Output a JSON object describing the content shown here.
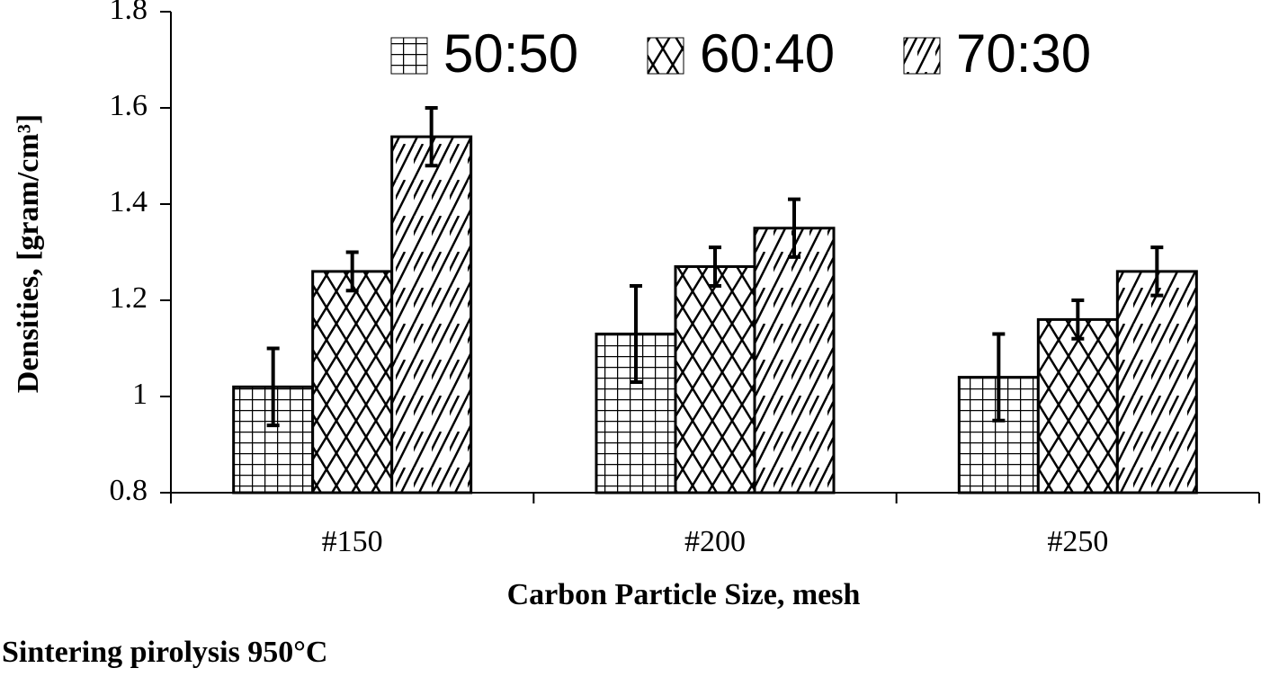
{
  "chart_data": {
    "type": "bar",
    "y_label": "Densities, [gram/cm³]",
    "x_label": "Carbon Particle Size, mesh",
    "annotation": "Sintering pirolysis 950°C",
    "categories": [
      "#150",
      "#200",
      "#250"
    ],
    "series": [
      {
        "name": "50:50",
        "color": "#000000",
        "pattern": "grid",
        "values": [
          1.02,
          1.13,
          1.04
        ],
        "errors": [
          0.08,
          0.1,
          0.09
        ]
      },
      {
        "name": "60:40",
        "color": "#000000",
        "pattern": "crosshatch",
        "values": [
          1.26,
          1.27,
          1.16
        ],
        "errors": [
          0.04,
          0.04,
          0.04
        ]
      },
      {
        "name": "70:30",
        "color": "#000000",
        "pattern": "diagonal",
        "values": [
          1.54,
          1.35,
          1.26
        ],
        "errors": [
          0.06,
          0.06,
          0.05
        ]
      }
    ],
    "ylim": [
      0.8,
      1.8
    ],
    "yticks": [
      0.8,
      1,
      1.2,
      1.4,
      1.6,
      1.8
    ],
    "grid": false
  }
}
